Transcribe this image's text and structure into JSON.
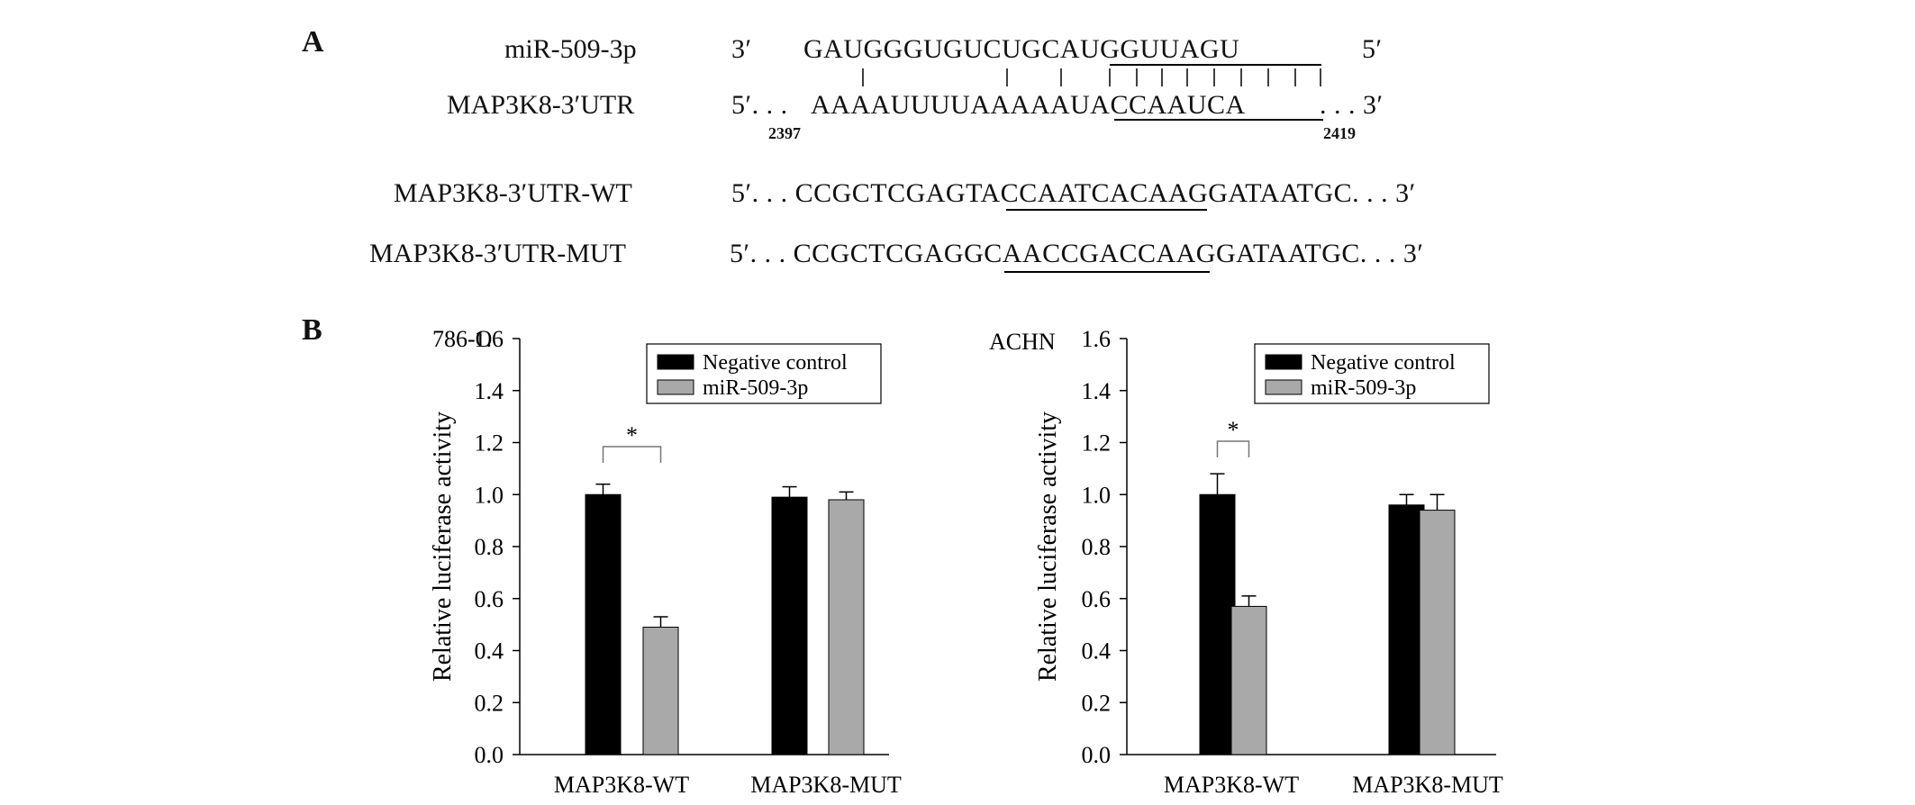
{
  "panels": {
    "a": "A",
    "b": "B"
  },
  "alignment": {
    "mirna": {
      "label": "miR-509-3p",
      "end_left": "3′",
      "end_right": "5′",
      "sequence": "GAUGGGUGUCUGCAUGGUUAGU",
      "seed": "AUGGUUAGU"
    },
    "utr": {
      "label": "MAP3K8-3′UTR",
      "prefix": "5′. . .",
      "suffix": ". . . 3′",
      "sequence": "AAAAUUUUAAAAAUACCAAUCA",
      "site": "UACCAAUCA",
      "start": "2397",
      "end": "2419"
    },
    "wt": {
      "label": "MAP3K8-3′UTR-WT",
      "prefix": "5′. . .",
      "flank_left": "CCGCTCGAG",
      "site": "TACCAATCA",
      "flank_right": "CAAGGATAATGC",
      "suffix": ". . . 3′"
    },
    "mut": {
      "label": "MAP3K8-3′UTR-MUT",
      "prefix": "5′. . .",
      "flank_left": "CCGCTCGAG",
      "site": "GCAACCGAC",
      "flank_right": "CAAGGATAATGC",
      "suffix": ". . . 3′"
    }
  },
  "chart_data": [
    {
      "type": "bar",
      "title": "786-O",
      "ylabel": "Relative luciferase activity",
      "ylim": [
        0,
        1.6
      ],
      "yticks": [
        "0.0",
        "0.2",
        "0.4",
        "0.6",
        "0.8",
        "1.0",
        "1.2",
        "1.4",
        "1.6"
      ],
      "categories": [
        "MAP3K8-WT",
        "MAP3K8-MUT"
      ],
      "series": [
        {
          "name": "Negative control",
          "color": "#000000",
          "values": [
            1.0,
            0.99
          ],
          "errors": [
            0.04,
            0.04
          ]
        },
        {
          "name": "miR-509-3p",
          "color": "#a9a9a9",
          "values": [
            0.49,
            0.98
          ],
          "errors": [
            0.04,
            0.03
          ]
        }
      ],
      "significance": [
        {
          "category": "MAP3K8-WT",
          "label": "*"
        }
      ],
      "legend": "top-right",
      "grid": false
    },
    {
      "type": "bar",
      "title": "ACHN",
      "ylabel": "Relative luciferase activity",
      "ylim": [
        0,
        1.6
      ],
      "yticks": [
        "0.0",
        "0.2",
        "0.4",
        "0.6",
        "0.8",
        "1.0",
        "1.2",
        "1.4",
        "1.6"
      ],
      "categories": [
        "MAP3K8-WT",
        "MAP3K8-MUT"
      ],
      "series": [
        {
          "name": "Negative control",
          "color": "#000000",
          "values": [
            1.0,
            0.96
          ],
          "errors": [
            0.08,
            0.04
          ]
        },
        {
          "name": "miR-509-3p",
          "color": "#a9a9a9",
          "values": [
            0.57,
            0.94
          ],
          "errors": [
            0.04,
            0.06
          ]
        }
      ],
      "significance": [
        {
          "category": "MAP3K8-WT",
          "label": "*"
        }
      ],
      "legend": "top-right",
      "grid": false
    }
  ]
}
